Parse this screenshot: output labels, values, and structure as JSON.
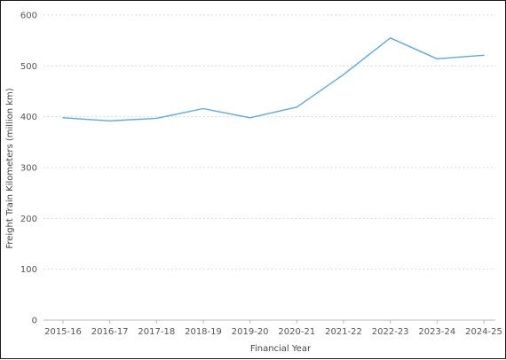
{
  "chart_data": {
    "type": "line",
    "title": "",
    "xlabel": "Financial Year",
    "ylabel": "Freight Train Kilometers (million km)",
    "categories": [
      "2015-16",
      "2016-17",
      "2017-18",
      "2018-19",
      "2019-20",
      "2020-21",
      "2021-22",
      "2022-23",
      "2023-24",
      "2024-25"
    ],
    "series": [
      {
        "values": [
          398,
          392,
          397,
          416,
          398,
          419,
          483,
          555,
          514,
          521
        ]
      }
    ],
    "ylim": [
      0,
      600
    ],
    "yticks": [
      0,
      100,
      200,
      300,
      400,
      500,
      600
    ],
    "grid": true,
    "legend": "none",
    "colors": {
      "line": "#5aaaea",
      "grid": "#cfcfcf",
      "text": "#555555"
    }
  }
}
